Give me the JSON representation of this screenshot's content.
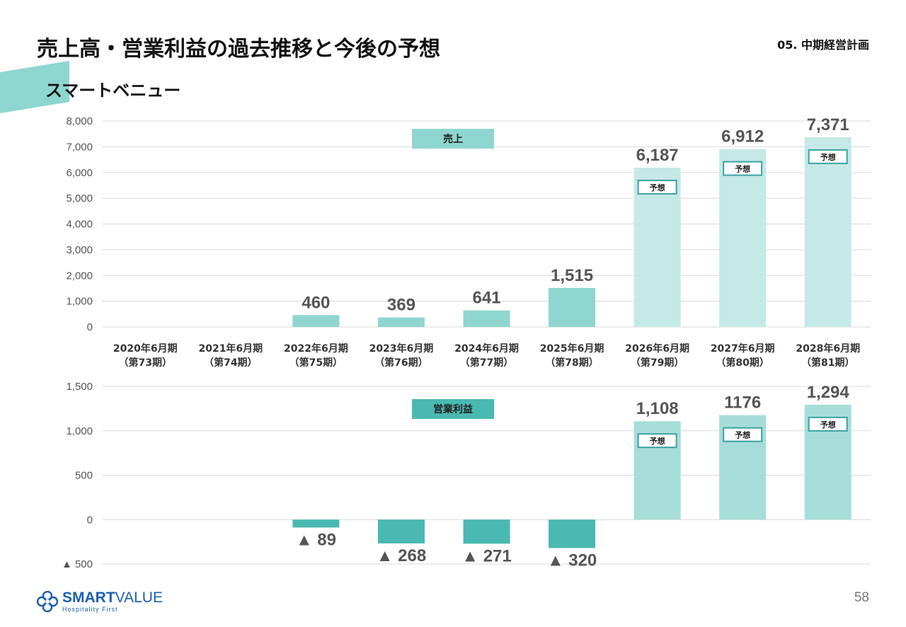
{
  "header": {
    "title": "売上高・営業利益の過去推移と今後の予想",
    "section": "05. 中期経営計画",
    "subtitle": "スマートベニュー"
  },
  "footer": {
    "logo_main_bold": "SMART",
    "logo_main": "VALUE",
    "logo_sub": "Hospitality First",
    "page_number": "58"
  },
  "colors": {
    "accent": "#8ed6cf",
    "teal": "#49b9b1",
    "forecast": "#c5e9e6",
    "forecast_profit": "#a7ddd8",
    "tag_border": "#3aa3a4",
    "deco": "#8ed6cf"
  },
  "chart_data": [
    {
      "type": "bar",
      "series_label": "売上",
      "categories": [
        "2020年6月期\n（第73期）",
        "2021年6月期\n（第74期）",
        "2022年6月期\n（第75期）",
        "2023年6月期\n（第76期）",
        "2024年6月期\n（第77期）",
        "2025年6月期\n（第78期）",
        "2026年6月期\n（第79期）",
        "2027年6月期\n（第80期）",
        "2028年6月期\n（第81期）"
      ],
      "values": [
        null,
        null,
        460,
        369,
        641,
        1515,
        6187,
        6912,
        7371
      ],
      "value_labels": [
        "",
        "",
        "460",
        "369",
        "641",
        "1,515",
        "6,187",
        "6,912",
        "7,371"
      ],
      "forecast": [
        false,
        false,
        false,
        false,
        false,
        false,
        true,
        true,
        true
      ],
      "forecast_tag": "予想",
      "ylim": [
        0,
        8000
      ],
      "yticks": [
        0,
        1000,
        2000,
        3000,
        4000,
        5000,
        6000,
        7000,
        8000
      ],
      "ytick_labels": [
        "0",
        "1,000",
        "2,000",
        "3,000",
        "4,000",
        "5,000",
        "6,000",
        "7,000",
        "8,000"
      ],
      "grid": true
    },
    {
      "type": "bar",
      "series_label": "営業利益",
      "categories": [
        "2020年6月期\n（第73期）",
        "2021年6月期\n（第74期）",
        "2022年6月期\n（第75期）",
        "2023年6月期\n（第76期）",
        "2024年6月期\n（第77期）",
        "2025年6月期\n（第78期）",
        "2026年6月期\n（第79期）",
        "2027年6月期\n（第80期）",
        "2028年6月期\n（第81期）"
      ],
      "values": [
        null,
        null,
        -89,
        -268,
        -271,
        -320,
        1108,
        1176,
        1294
      ],
      "value_labels": [
        "",
        "",
        "▲ 89",
        "▲ 268",
        "▲ 271",
        "▲ 320",
        "1,108",
        "1176",
        "1,294"
      ],
      "forecast": [
        false,
        false,
        false,
        false,
        false,
        false,
        true,
        true,
        true
      ],
      "forecast_tag": "予想",
      "ylim": [
        -500,
        1500
      ],
      "yticks": [
        -500,
        0,
        500,
        1000,
        1500
      ],
      "ytick_labels": [
        "▲ 500",
        "0",
        "500",
        "1,000",
        "1,500"
      ],
      "grid": true
    }
  ]
}
